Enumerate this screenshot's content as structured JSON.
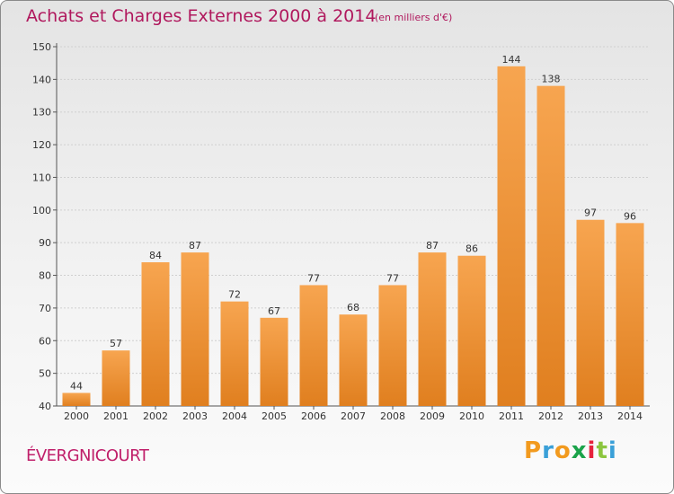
{
  "title": "Achats et Charges Externes 2000 à 2014",
  "unit_note": "(en milliers d'€)",
  "commune": "ÉVERGNICOURT",
  "logo": {
    "letters": [
      "P",
      "r",
      "o",
      "x",
      "i",
      "t",
      "i"
    ],
    "colors": [
      "#f29a1e",
      "#3aa0d8",
      "#f29a1e",
      "#1aa34a",
      "#e6233d",
      "#8cc63f",
      "#3aa0d8"
    ]
  },
  "colors": {
    "bar_light": "#f7a550",
    "bar_dark": "#e07f1f",
    "title": "#b0185d"
  },
  "chart_data": {
    "type": "bar",
    "title": "Achats et Charges Externes 2000 à 2014",
    "categories": [
      "2000",
      "2001",
      "2002",
      "2003",
      "2004",
      "2005",
      "2006",
      "2007",
      "2008",
      "2009",
      "2010",
      "2011",
      "2012",
      "2013",
      "2014"
    ],
    "values": [
      44,
      57,
      84,
      87,
      72,
      67,
      77,
      68,
      77,
      87,
      86,
      144,
      138,
      97,
      96
    ],
    "ylim": [
      40,
      150
    ],
    "yticks": [
      40,
      50,
      60,
      70,
      80,
      90,
      100,
      110,
      120,
      130,
      140,
      150
    ],
    "grid": true,
    "data_labels": true
  }
}
